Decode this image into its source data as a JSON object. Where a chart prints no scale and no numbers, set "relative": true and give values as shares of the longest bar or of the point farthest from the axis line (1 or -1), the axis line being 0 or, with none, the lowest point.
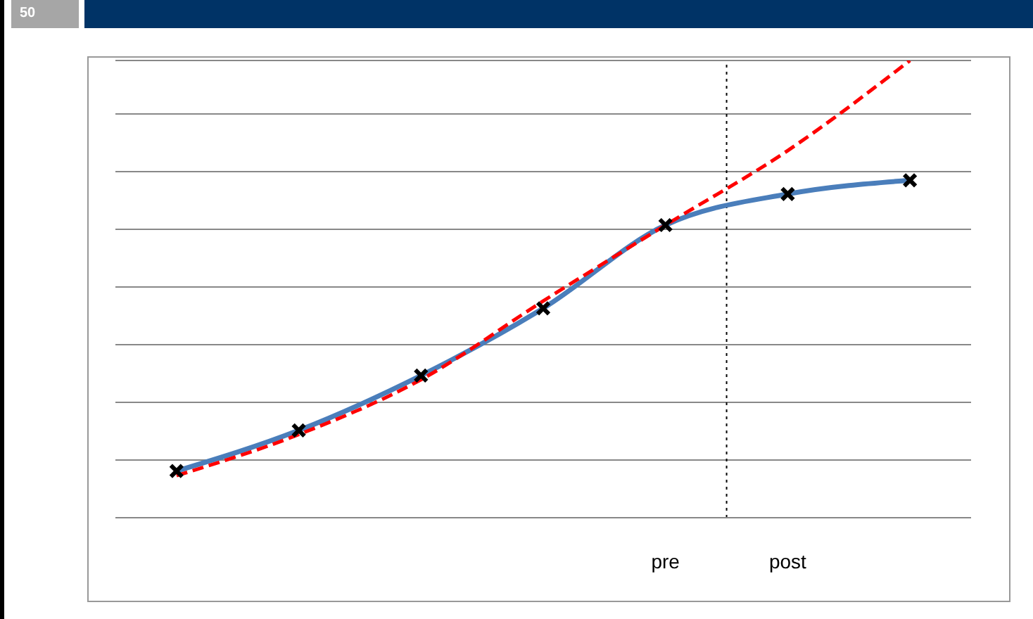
{
  "chart_data": {
    "type": "line",
    "relative": true,
    "categories": [
      null,
      null,
      null,
      null,
      "pre",
      "post",
      null
    ],
    "series": [
      {
        "color": "#4a7ebb",
        "marker": "cross",
        "line_style": "solid",
        "values": [
          0.102,
          0.191,
          0.311,
          0.458,
          0.64,
          0.708,
          0.738
        ]
      },
      {
        "color": "#ff0000",
        "marker": "none",
        "line_style": "dashed",
        "values": [
          0.092,
          0.182,
          0.302,
          0.474,
          0.64,
          0.803,
          1.0
        ]
      }
    ],
    "grid": "y",
    "annotations": [
      "50"
    ]
  }
}
